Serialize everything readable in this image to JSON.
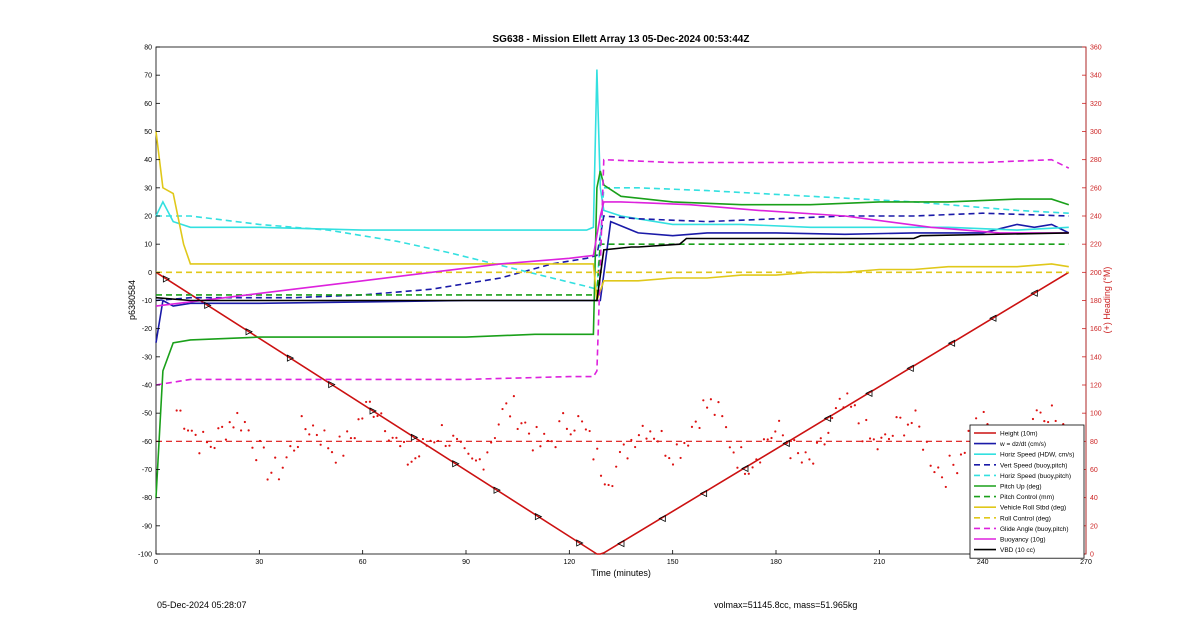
{
  "footer": {
    "left": "05-Dec-2024 05:28:07",
    "right": "volmax=51145.8cc, mass=51.965kg"
  },
  "chart_data": {
    "type": "line",
    "title": "SG638 - Mission Ellett Array 13 05-Dec-2024 00:53:44Z",
    "xlabel": "Time (minutes)",
    "ylabel_left": "p6380584",
    "ylabel_right": "(+) Heading (°M)",
    "xlim": [
      0,
      270
    ],
    "ylim_left": [
      -100,
      80
    ],
    "ylim_right": [
      0,
      360
    ],
    "xticks": [
      0,
      30,
      60,
      90,
      120,
      150,
      180,
      210,
      240,
      270
    ],
    "yticks_left": [
      -100,
      -90,
      -80,
      -70,
      -60,
      -50,
      -40,
      -30,
      -20,
      -10,
      0,
      10,
      20,
      30,
      40,
      50,
      60,
      70,
      80
    ],
    "yticks_right": [
      0,
      20,
      40,
      60,
      80,
      100,
      120,
      140,
      160,
      180,
      200,
      220,
      240,
      260,
      280,
      300,
      320,
      340,
      360
    ],
    "grid": false,
    "legend_position": "bottom-right",
    "colors": {
      "depth": "#cc1111",
      "w": "#1a1aa8",
      "cyan": "#33e0e0",
      "green": "#1aa01a",
      "yellow": "#e0c81a",
      "magenta": "#dd22dd",
      "black": "#000000",
      "heading": "#dd1111",
      "axis_right": "#cc2222"
    },
    "series": [
      {
        "name": "Height (10m)",
        "style": "solid",
        "color": "#cc1111",
        "x": [
          0,
          128,
          129,
          130,
          265
        ],
        "y": [
          0,
          -100,
          -100,
          -99.6,
          0
        ]
      },
      {
        "name": "w = dz/dt (cm/s)",
        "style": "solid",
        "color": "#1a1aa8",
        "x": [
          0,
          2,
          5,
          10,
          30,
          60,
          90,
          120,
          127,
          129,
          132,
          140,
          150,
          160,
          180,
          200,
          220,
          240,
          250,
          255,
          260,
          265
        ],
        "y": [
          -25,
          -10,
          -12,
          -11,
          -11,
          -10.5,
          -10,
          -10,
          -10,
          -10,
          18,
          14,
          13,
          14,
          14,
          13.5,
          14,
          14,
          17,
          16,
          17,
          14
        ]
      },
      {
        "name": "Horiz Speed (HDW, cm/s)",
        "style": "solid",
        "color": "#33e0e0",
        "x": [
          0,
          2,
          5,
          10,
          30,
          60,
          90,
          110,
          125,
          127,
          128,
          129,
          130,
          135,
          150,
          170,
          190,
          210,
          230,
          250,
          265
        ],
        "y": [
          20,
          25,
          18,
          16,
          16,
          15,
          15,
          15,
          15,
          16,
          72,
          30,
          22,
          20,
          17,
          17,
          16,
          16,
          16,
          15,
          16
        ]
      },
      {
        "name": "Vert Speed (buoy,pitch)",
        "style": "dashed",
        "color": "#1a1aa8",
        "x": [
          0,
          10,
          40,
          60,
          80,
          100,
          115,
          125,
          128,
          130,
          140,
          160,
          180,
          200,
          220,
          240,
          265
        ],
        "y": [
          -10,
          -9,
          -9,
          -8,
          -6,
          -2,
          3,
          5,
          6,
          20,
          19,
          18,
          19,
          20,
          20,
          21,
          20
        ]
      },
      {
        "name": "Horiz Speed (buoy,pitch)",
        "style": "dashed",
        "color": "#33e0e0",
        "x": [
          0,
          10,
          30,
          50,
          70,
          85,
          95,
          105,
          115,
          125,
          128,
          130,
          140,
          160,
          190,
          220,
          250,
          265
        ],
        "y": [
          20,
          20,
          17,
          15,
          11,
          7,
          4,
          1,
          -2,
          -5,
          -6,
          30,
          30,
          29,
          27,
          25,
          22,
          21
        ]
      },
      {
        "name": "Pitch Up (deg)",
        "style": "solid",
        "color": "#1aa01a",
        "x": [
          0,
          2,
          5,
          10,
          30,
          60,
          90,
          110,
          125,
          127,
          128,
          129,
          130,
          135,
          150,
          170,
          190,
          210,
          230,
          250,
          260,
          265
        ],
        "y": [
          -80,
          -35,
          -25,
          -24,
          -23,
          -23,
          -23,
          -22,
          -22,
          -22,
          30,
          36,
          31,
          27,
          25,
          24,
          24,
          25,
          25,
          26,
          26,
          24
        ]
      },
      {
        "name": "Pitch Control (mm)",
        "style": "dashed",
        "color": "#1aa01a",
        "x": [
          0,
          128,
          129,
          265
        ],
        "y": [
          -8,
          -8,
          10,
          10
        ]
      },
      {
        "name": "Vehicle Roll Stbd (deg)",
        "style": "solid",
        "color": "#e0c81a",
        "x": [
          0,
          2,
          5,
          8,
          10,
          20,
          30,
          40,
          50,
          60,
          70,
          80,
          90,
          100,
          110,
          120,
          127,
          128,
          130,
          140,
          150,
          160,
          170,
          180,
          190,
          200,
          210,
          220,
          230,
          240,
          250,
          260,
          265
        ],
        "y": [
          50,
          30,
          28,
          10,
          3,
          3,
          3,
          3,
          3,
          3,
          3,
          3,
          3,
          3,
          3,
          3,
          3,
          -10,
          -3,
          -3,
          -2,
          -2,
          -1,
          -1,
          0,
          0,
          1,
          1,
          2,
          2,
          2,
          3,
          2
        ]
      },
      {
        "name": "Roll Control (deg)",
        "style": "dashed",
        "color": "#e0c81a",
        "x": [
          0,
          128,
          129,
          265
        ],
        "y": [
          0,
          0,
          0,
          0
        ]
      },
      {
        "name": "Glide Angle (buoy,pitch)",
        "style": "dashed",
        "color": "#dd22dd",
        "x": [
          0,
          10,
          30,
          60,
          90,
          120,
          127,
          128,
          130,
          150,
          180,
          210,
          240,
          260,
          265
        ],
        "y": [
          -40,
          -38,
          -38,
          -38,
          -38,
          -37,
          -37,
          -35,
          40,
          39,
          39,
          39,
          39,
          40,
          37
        ]
      },
      {
        "name": "Buoyancy (10g)",
        "style": "solid",
        "color": "#dd22dd",
        "x": [
          0,
          20,
          40,
          60,
          80,
          100,
          120,
          127,
          129,
          130,
          135,
          155,
          175,
          200,
          225,
          245,
          265
        ],
        "y": [
          -12,
          -9,
          -6,
          -3,
          0,
          3,
          5,
          6,
          20,
          25,
          25,
          24,
          22,
          20,
          16,
          14,
          14
        ]
      },
      {
        "name": "VBD (10 cc)",
        "style": "solid",
        "color": "#000000",
        "x": [
          0,
          10,
          127,
          128,
          130,
          138,
          140,
          152,
          154,
          220,
          222,
          265
        ],
        "y": [
          -9,
          -10,
          -10,
          -10,
          8,
          9,
          9,
          10,
          12,
          12,
          13,
          14
        ]
      }
    ]
  }
}
